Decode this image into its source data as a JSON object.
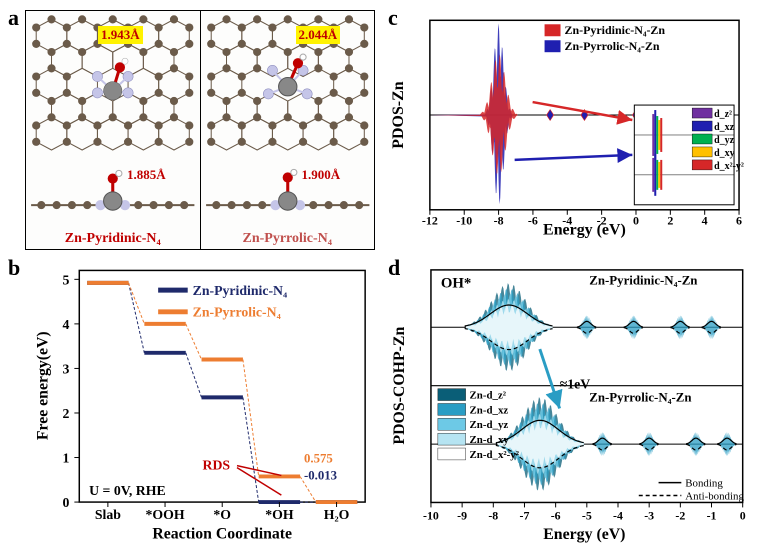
{
  "labels": {
    "a": "a",
    "b": "b",
    "c": "c",
    "d": "d"
  },
  "panel_a": {
    "left": {
      "top_dist": "1.943Å",
      "side_dist": "1.885Å",
      "name": "Zn-Pyridinic-N₄",
      "name_color": "#c00000"
    },
    "right": {
      "top_dist": "2.044Å",
      "side_dist": "1.900Å",
      "name": "Zn-Pyrrolic-N₄",
      "name_color": "#c0504d"
    },
    "atom_colors": {
      "C": "#6b5b4a",
      "N": "#b8b8e0",
      "Zn": "#888888",
      "O": "#c00000",
      "H": "#ffffff",
      "bond": "#c00000"
    }
  },
  "panel_b": {
    "type": "step-line",
    "title_x": "Reaction Coordinate",
    "title_y": "Free energy(eV)",
    "xlim": [
      0,
      5
    ],
    "ylim": [
      0,
      5.2
    ],
    "xtick_labels": [
      "Slab",
      "*OOH",
      "*O",
      "*OH",
      "H₂O"
    ],
    "ytick_step": 1,
    "series": [
      {
        "name": "Zn-Pyridinic-N₄",
        "color": "#1f2a6b",
        "values": [
          4.92,
          3.35,
          2.35,
          0.0,
          0.0
        ]
      },
      {
        "name": "Zn-Pyrrolic-N₄",
        "color": "#ed7d31",
        "values": [
          4.92,
          4.0,
          3.2,
          0.575,
          0.0
        ]
      }
    ],
    "annotations": {
      "rds": "RDS",
      "rds_color": "#c00000",
      "val1": "0.575",
      "val1_color": "#ed7d31",
      "val2": "-0.013",
      "val2_color": "#1f2a6b",
      "condition": "U = 0V, RHE"
    },
    "font_size": 14,
    "line_width": 4
  },
  "panel_c": {
    "type": "pdos",
    "title_x": "Energy (eV)",
    "title_y": "PDOS-Zn",
    "xlim": [
      -12,
      6
    ],
    "xtick_step": 2,
    "series": [
      {
        "name": "Zn-Pyridinic-N₄-Zn",
        "color": "#d62728"
      },
      {
        "name": "Zn-Pyrrolic-N₄-Zn",
        "color": "#1f1fb0"
      }
    ],
    "peak_center": -8,
    "arrow_red": "#d62728",
    "arrow_blue": "#1f1fb0",
    "inset_legend": [
      {
        "name": "d_z²",
        "color": "#7030a0"
      },
      {
        "name": "d_xz",
        "color": "#1f1fb0"
      },
      {
        "name": "d_yz",
        "color": "#00b050"
      },
      {
        "name": "d_xy",
        "color": "#ffc000"
      },
      {
        "name": "d_x²-y²",
        "color": "#d62728"
      }
    ],
    "font_size": 14
  },
  "panel_d": {
    "type": "pdos-cohp",
    "title_x": "Energy (eV)",
    "title_y": "PDOS-COHP-Zn",
    "xlim": [
      -10,
      0
    ],
    "xtick_step": 1,
    "oh_label": "OH*",
    "shift_label": "≈1eV",
    "top_label": "Zn-Pyridinic-N₄-Zn",
    "bot_label": "Zn-Pyrrolic-N₄-Zn",
    "bonding_label": "Bonding",
    "antibonding_label": "Anti-bonding",
    "fill_palette": [
      {
        "name": "Zn-d_z²",
        "color": "#0a5e77"
      },
      {
        "name": "Zn-d_xz",
        "color": "#2a9dc4"
      },
      {
        "name": "Zn-d_yz",
        "color": "#6dc9e6"
      },
      {
        "name": "Zn-d_xy",
        "color": "#b6e4f2"
      },
      {
        "name": "Zn-d_x²-y²",
        "color": "#ffffff"
      }
    ],
    "line_dark": "#000000",
    "font_size": 14
  },
  "bg_stripes": {
    "light": "#ffffff",
    "dark": "#e4e4e4"
  }
}
